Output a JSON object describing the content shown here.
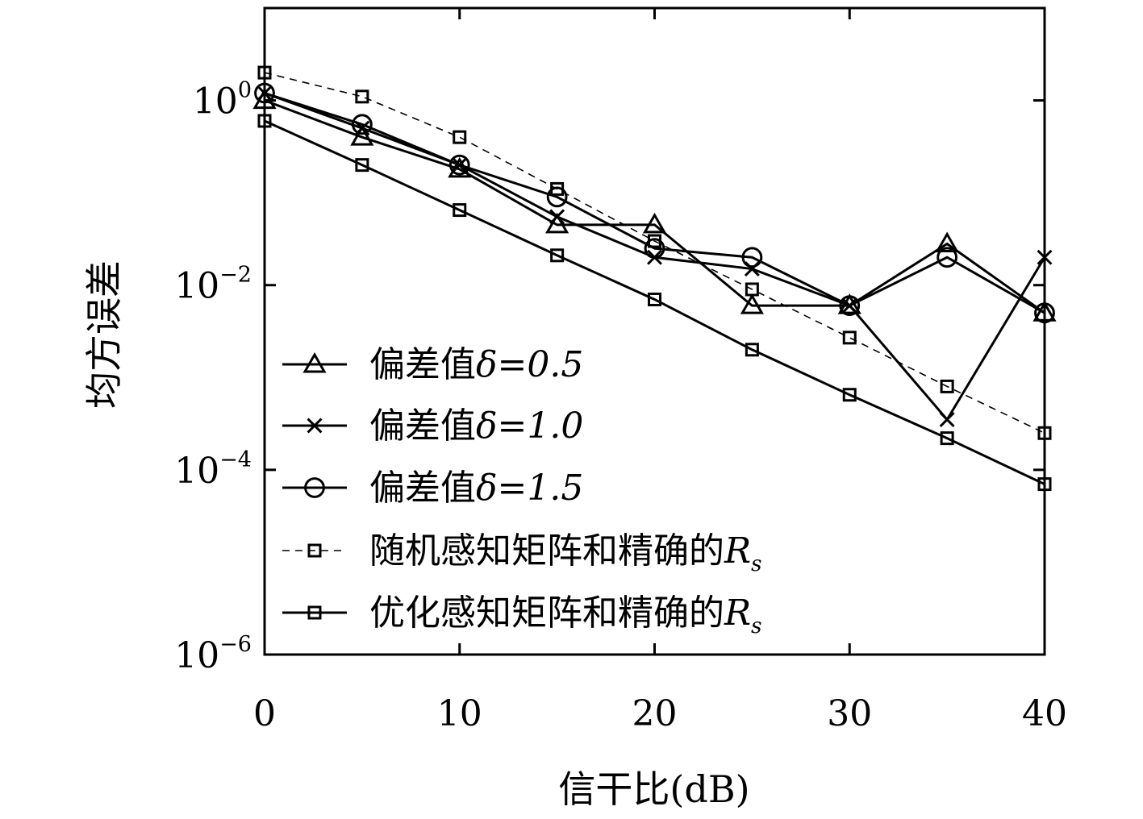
{
  "chart_data": {
    "type": "line",
    "xlabel": "信干比(dB)",
    "ylabel": "均方误差",
    "x": [
      0,
      5,
      10,
      15,
      20,
      25,
      30,
      35,
      40
    ],
    "xlim": [
      0,
      40
    ],
    "ylim": [
      1e-06,
      10
    ],
    "yscale": "log",
    "xticks": [
      "0",
      "10",
      "20",
      "30",
      "40"
    ],
    "yticks": [
      {
        "base": "10",
        "exp": "0"
      },
      {
        "base": "10",
        "exp": "−2"
      },
      {
        "base": "10",
        "exp": "−4"
      },
      {
        "base": "10",
        "exp": "−6"
      }
    ],
    "grid": false,
    "legend_position": "bottom-left",
    "series": [
      {
        "name": "偏差值δ=0.5",
        "label_base": "偏差值",
        "label_math": "δ=0.5",
        "marker": "triangle",
        "line": "solid",
        "values": [
          1.0,
          0.4,
          0.18,
          0.045,
          0.045,
          0.006,
          0.006,
          0.028,
          0.005
        ]
      },
      {
        "name": "偏差值δ=1.0",
        "label_base": "偏差值",
        "label_math": "δ=1.0",
        "marker": "x",
        "line": "solid",
        "values": [
          1.2,
          0.5,
          0.2,
          0.055,
          0.02,
          0.015,
          0.006,
          0.00035,
          0.02
        ]
      },
      {
        "name": "偏差值δ=1.5",
        "label_base": "偏差值",
        "label_math": "δ=1.5",
        "marker": "circle",
        "line": "solid",
        "values": [
          1.2,
          0.55,
          0.2,
          0.09,
          0.025,
          0.02,
          0.006,
          0.02,
          0.005
        ]
      },
      {
        "name": "随机感知矩阵和精确的Rs",
        "label_base": "随机感知矩阵和精确的",
        "label_math": "R",
        "label_sub": "s",
        "marker": "square",
        "line": "dashed",
        "values": [
          2.0,
          1.1,
          0.4,
          0.11,
          0.03,
          0.009,
          0.0027,
          0.0008,
          0.00025
        ]
      },
      {
        "name": "优化感知矩阵和精确的Rs",
        "label_base": "优化感知矩阵和精确的",
        "label_math": "R",
        "label_sub": "s",
        "marker": "square",
        "line": "solid",
        "values": [
          0.6,
          0.2,
          0.065,
          0.021,
          0.007,
          0.002,
          0.00065,
          0.00022,
          7e-05
        ]
      }
    ]
  }
}
